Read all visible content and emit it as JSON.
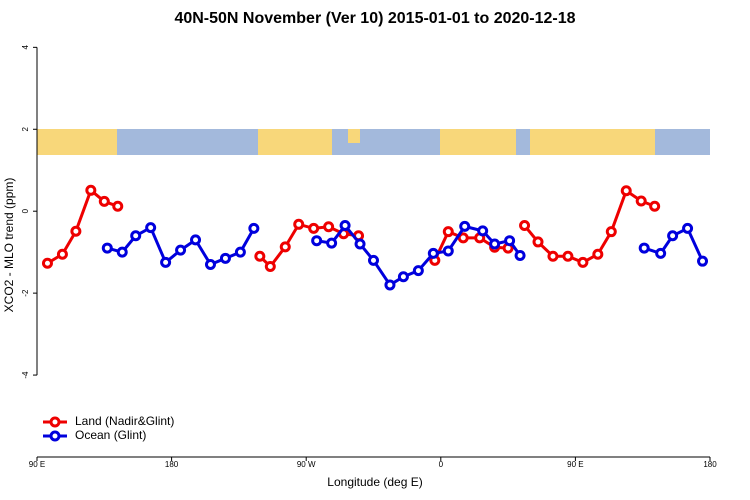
{
  "chart_data": {
    "type": "line",
    "title": "40N-50N November (Ver 10)   2015-01-01 to 2020-12-18",
    "x_label": "Longitude (deg E)",
    "y_label": "XCO2 - MLO trend (ppm)",
    "xlim": [
      90,
      540
    ],
    "xticks": [
      {
        "value": 90,
        "label": "90 E"
      },
      {
        "value": 180,
        "label": "180"
      },
      {
        "value": 270,
        "label": "90 W"
      },
      {
        "value": 360,
        "label": "0"
      },
      {
        "value": 450,
        "label": "90 E"
      },
      {
        "value": 540,
        "label": "180"
      }
    ],
    "ylim": [
      -6,
      4.35
    ],
    "yticks": [
      -4,
      -2,
      0,
      2,
      4
    ],
    "legend": "bottom-left",
    "series": [
      {
        "name": "Land (Nadir&Glint)",
        "color": "#ee0000",
        "x": [
          97,
          107,
          116,
          126,
          135,
          144,
          null,
          239,
          246,
          256,
          265,
          275,
          285,
          295,
          305,
          null,
          356,
          365,
          375,
          386,
          396,
          405,
          null,
          416,
          425,
          435,
          445,
          455,
          465,
          474,
          484,
          494,
          503
        ],
        "values": [
          -1.27,
          -1.05,
          -0.49,
          0.51,
          0.24,
          0.12,
          null,
          -1.1,
          -1.35,
          -0.87,
          -0.32,
          -0.42,
          -0.38,
          -0.55,
          -0.6,
          null,
          -1.2,
          -0.5,
          -0.65,
          -0.65,
          -0.88,
          -0.9,
          null,
          -0.35,
          -0.75,
          -1.1,
          -1.1,
          -1.25,
          -1.05,
          -0.5,
          0.5,
          0.25,
          0.12
        ]
      },
      {
        "name": "Ocean (Glint)",
        "color": "#0000dd",
        "x": [
          137,
          147,
          156,
          166,
          176,
          186,
          196,
          206,
          216,
          226,
          235,
          null,
          277,
          287,
          296,
          306,
          315,
          326,
          335,
          345,
          355,
          365,
          376,
          388,
          396,
          406,
          413,
          null,
          496,
          507,
          515,
          525,
          535
        ],
        "values": [
          -0.9,
          -1.0,
          -0.6,
          -0.4,
          -1.25,
          -0.95,
          -0.7,
          -1.3,
          -1.15,
          -1.0,
          -0.42,
          null,
          -0.72,
          -0.78,
          -0.35,
          -0.8,
          -1.2,
          -1.8,
          -1.6,
          -1.45,
          -1.03,
          -0.97,
          -0.37,
          -0.48,
          -0.8,
          -0.72,
          -1.08,
          null,
          -0.9,
          -1.03,
          -0.6,
          -0.42,
          -1.22
        ]
      }
    ]
  }
}
